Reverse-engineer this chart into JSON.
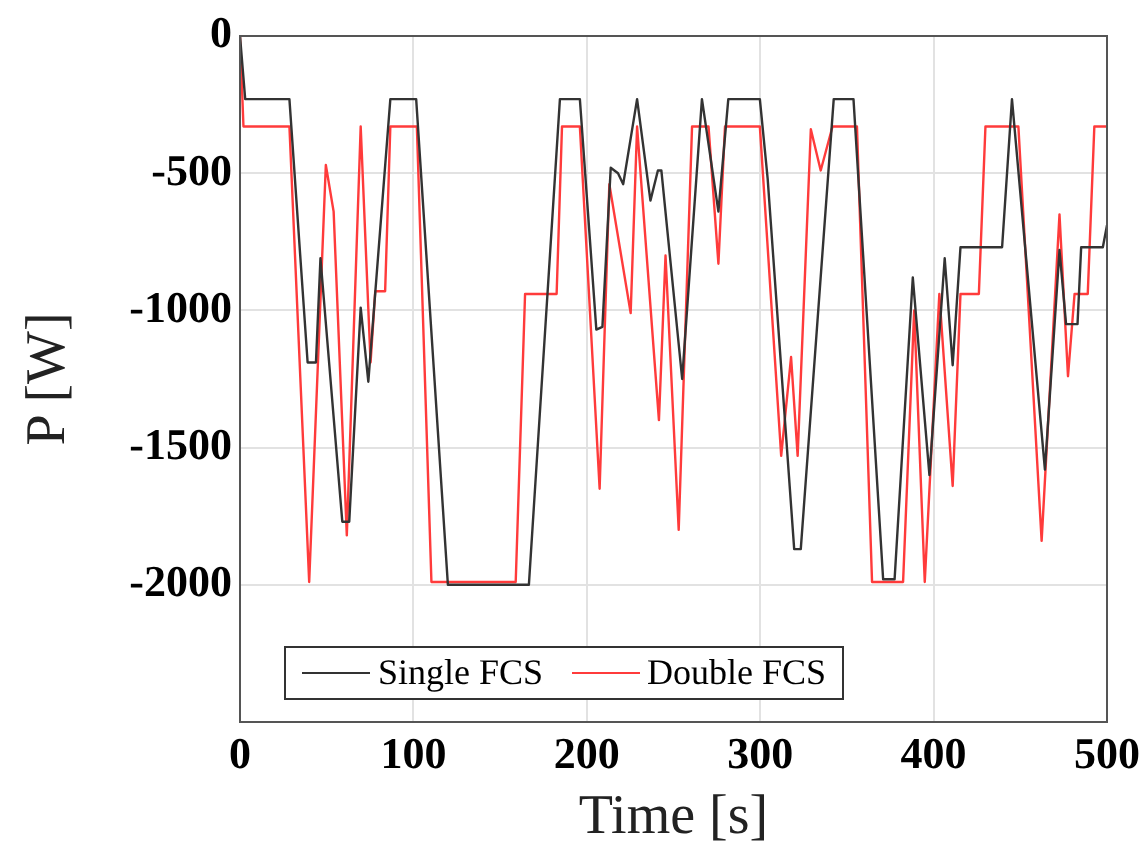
{
  "chart_data": {
    "type": "line",
    "xlabel": "Time [s]",
    "ylabel": "P [W]",
    "xlim": [
      0,
      500
    ],
    "xticks": [
      0,
      100,
      200,
      300,
      400,
      500
    ],
    "ylim": [
      -2500,
      0
    ],
    "yticks": [
      0,
      -500,
      -1000,
      -1500,
      -2000
    ],
    "grid": true,
    "legend": "bottom",
    "marker": "none",
    "line_style": "solid",
    "series": [
      {
        "name": "Single FCS",
        "color": "#333333",
        "x": [
          0,
          3,
          28.5,
          39,
          43.8,
          46.4,
          59,
          63,
          69.6,
          74,
          86.7,
          101.6,
          119.9,
          166.6,
          184.5,
          196,
          205.5,
          209,
          213.8,
          218,
          221,
          229,
          236.7,
          241,
          243,
          255,
          266.4,
          275.9,
          281.6,
          299.8,
          304.3,
          319.6,
          323.4,
          342.4,
          353.8,
          370.9,
          377.5,
          388,
          397.6,
          406.4,
          411,
          415.5,
          439.5,
          445.2,
          464.2,
          472.6,
          476.4,
          483,
          485.1,
          497.6,
          500
        ],
        "values": [
          0,
          -230,
          -230,
          -1190,
          -1190,
          -810,
          -1770,
          -1770,
          -990,
          -1260,
          -230,
          -230,
          -2000,
          -2000,
          -230,
          -230,
          -1070,
          -1060,
          -480,
          -500,
          -540,
          -230,
          -600,
          -490,
          -490,
          -1250,
          -230,
          -640,
          -230,
          -230,
          -520,
          -1870,
          -1870,
          -230,
          -230,
          -1980,
          -1980,
          -880,
          -1600,
          -810,
          -1200,
          -770,
          -770,
          -230,
          -1580,
          -780,
          -1050,
          -1050,
          -770,
          -770,
          -690
        ]
      },
      {
        "name": "Double FCS",
        "color": "#ff3b3b",
        "x": [
          0,
          2,
          28.5,
          39.9,
          49.5,
          54,
          61.6,
          69.6,
          75.3,
          78,
          83.7,
          86.7,
          102,
          110.4,
          159,
          164.4,
          182.6,
          185.7,
          196,
          207.4,
          213,
          225.3,
          229,
          241.6,
          245.4,
          253,
          260.7,
          270.2,
          275.9,
          279.7,
          299.8,
          312.1,
          317.8,
          321.6,
          329.2,
          334.9,
          341.7,
          355.8,
          364.5,
          382.4,
          388.8,
          394.9,
          403.3,
          411,
          415.5,
          426.1,
          429.9,
          448.9,
          462.3,
          472.6,
          477.5,
          481.3,
          488.9,
          492.7,
          500
        ],
        "values": [
          0,
          -330,
          -330,
          -1990,
          -470,
          -640,
          -1820,
          -330,
          -1190,
          -930,
          -930,
          -330,
          -330,
          -1990,
          -1990,
          -940,
          -940,
          -330,
          -330,
          -1650,
          -540,
          -1010,
          -330,
          -1400,
          -800,
          -1800,
          -330,
          -330,
          -830,
          -330,
          -330,
          -1530,
          -1170,
          -1530,
          -340,
          -490,
          -330,
          -330,
          -1990,
          -1990,
          -1000,
          -1990,
          -940,
          -1640,
          -940,
          -940,
          -330,
          -330,
          -1840,
          -650,
          -1240,
          -940,
          -940,
          -330,
          -330
        ]
      }
    ]
  }
}
